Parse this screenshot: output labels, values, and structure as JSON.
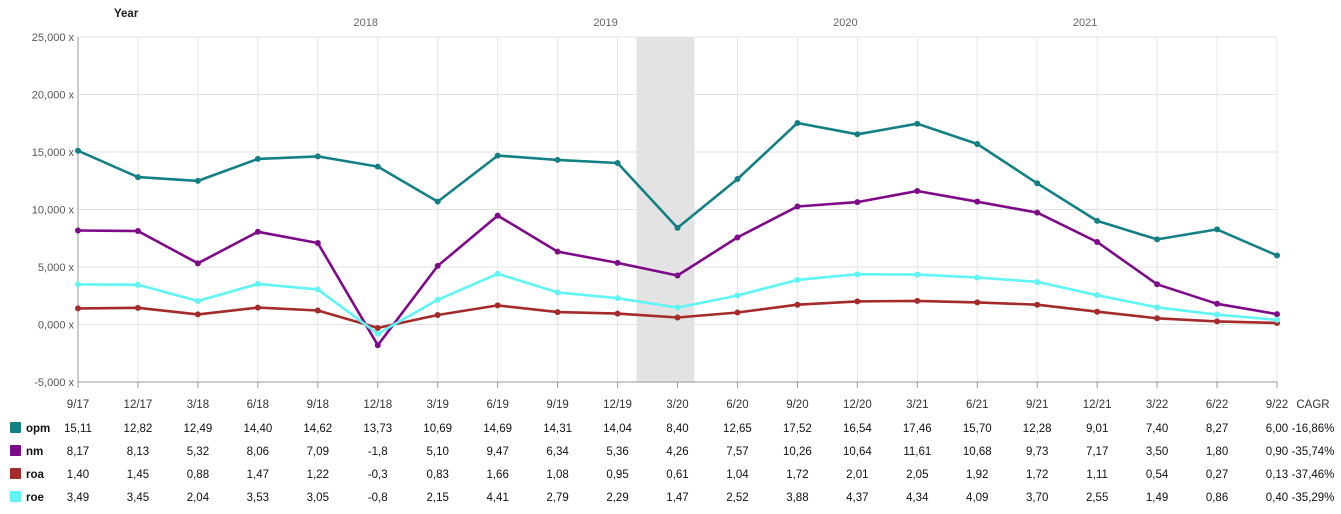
{
  "chart_data": {
    "type": "line",
    "x_title": "Year",
    "year_labels": [
      "2018",
      "2019",
      "2020",
      "2021"
    ],
    "categories": [
      "9/17",
      "12/17",
      "3/18",
      "6/18",
      "9/18",
      "12/18",
      "3/19",
      "6/19",
      "9/19",
      "12/19",
      "3/20",
      "6/20",
      "9/20",
      "12/20",
      "3/21",
      "6/21",
      "9/21",
      "12/21",
      "3/22",
      "6/22",
      "9/22"
    ],
    "ylim": [
      -5000,
      25000
    ],
    "y_ticks": [
      {
        "value": 25000,
        "label": "25,000 x"
      },
      {
        "value": 20000,
        "label": "20,000 x"
      },
      {
        "value": 15000,
        "label": "15,000 x"
      },
      {
        "value": 10000,
        "label": "10,000 x"
      },
      {
        "value": 5000,
        "label": "5,000 x"
      },
      {
        "value": 0,
        "label": "0,000 x"
      },
      {
        "value": -5000,
        "label": "-5,000 x"
      }
    ],
    "highlight_category": "3/20",
    "grid": true,
    "table_header": "CAGR",
    "series": [
      {
        "name": "opm",
        "color": "#138086",
        "values": [
          15110,
          12820,
          12490,
          14400,
          14620,
          13730,
          10690,
          14690,
          14310,
          14040,
          8400,
          12650,
          17520,
          16540,
          17460,
          15700,
          12280,
          9010,
          7400,
          8270,
          6000
        ],
        "labels": [
          "15,11",
          "12,82",
          "12,49",
          "14,40",
          "14,62",
          "13,73",
          "10,69",
          "14,69",
          "14,31",
          "14,04",
          "8,40",
          "12,65",
          "17,52",
          "16,54",
          "17,46",
          "15,70",
          "12,28",
          "9,01",
          "7,40",
          "8,27",
          "6,00"
        ],
        "cagr": "-16,86%"
      },
      {
        "name": "nm",
        "color": "#7f0a89",
        "values": [
          8170,
          8130,
          5320,
          8060,
          7090,
          -1800,
          5100,
          9470,
          6340,
          5360,
          4260,
          7570,
          10260,
          10640,
          11610,
          10680,
          9730,
          7170,
          3500,
          1800,
          900
        ],
        "labels": [
          "8,17",
          "8,13",
          "5,32",
          "8,06",
          "7,09",
          "-1,8",
          "5,10",
          "9,47",
          "6,34",
          "5,36",
          "4,26",
          "7,57",
          "10,26",
          "10,64",
          "11,61",
          "10,68",
          "9,73",
          "7,17",
          "3,50",
          "1,80",
          "0,90"
        ],
        "cagr": "-35,74%"
      },
      {
        "name": "roa",
        "color": "#a52a2a",
        "values": [
          1400,
          1450,
          880,
          1470,
          1220,
          -300,
          830,
          1660,
          1080,
          950,
          610,
          1040,
          1720,
          2010,
          2050,
          1920,
          1720,
          1110,
          540,
          270,
          130
        ],
        "labels": [
          "1,40",
          "1,45",
          "0,88",
          "1,47",
          "1,22",
          "-0,3",
          "0,83",
          "1,66",
          "1,08",
          "0,95",
          "0,61",
          "1,04",
          "1,72",
          "2,01",
          "2,05",
          "1,92",
          "1,72",
          "1,11",
          "0,54",
          "0,27",
          "0,13"
        ],
        "cagr": "-37,46%"
      },
      {
        "name": "roe",
        "color": "#5ff5f5",
        "values": [
          3490,
          3450,
          2040,
          3530,
          3050,
          -800,
          2150,
          4410,
          2790,
          2290,
          1470,
          2520,
          3880,
          4370,
          4340,
          4090,
          3700,
          2550,
          1490,
          860,
          400
        ],
        "labels": [
          "3,49",
          "3,45",
          "2,04",
          "3,53",
          "3,05",
          "-0,8",
          "2,15",
          "4,41",
          "2,79",
          "2,29",
          "1,47",
          "2,52",
          "3,88",
          "4,37",
          "4,34",
          "4,09",
          "3,70",
          "2,55",
          "1,49",
          "0,86",
          "0,40"
        ],
        "cagr": "-35,29%"
      }
    ]
  }
}
